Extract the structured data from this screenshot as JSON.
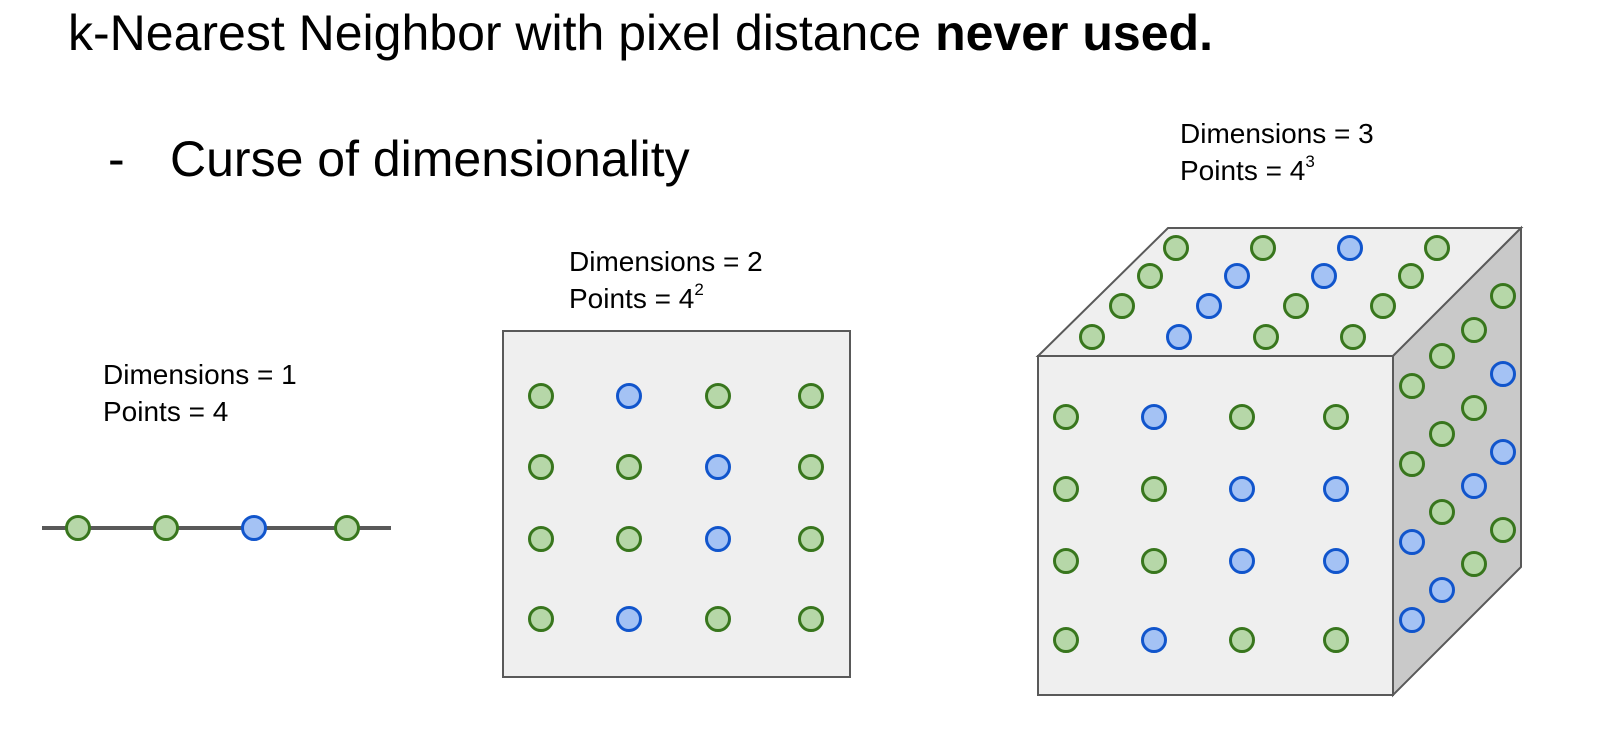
{
  "title": {
    "normal": "k-Nearest Neighbor with pixel distance ",
    "bold": "never used."
  },
  "bullet": {
    "dash": "-",
    "text": "Curse of dimensionality"
  },
  "panels": [
    {
      "dimensions_text": "Dimensions = 1",
      "points_text": "Points = 4",
      "points_exponent": "",
      "point_colors": [
        "green",
        "green",
        "blue",
        "green"
      ]
    },
    {
      "dimensions_text": "Dimensions = 2",
      "points_text": "Points = 4",
      "points_exponent": "2",
      "grid_colors": [
        [
          "green",
          "blue",
          "green",
          "green"
        ],
        [
          "green",
          "green",
          "blue",
          "green"
        ],
        [
          "green",
          "green",
          "blue",
          "green"
        ],
        [
          "green",
          "blue",
          "green",
          "green"
        ]
      ]
    },
    {
      "dimensions_text": "Dimensions = 3",
      "points_text": "Points = 4",
      "points_exponent": "3",
      "front_face_colors": [
        [
          "green",
          "blue",
          "green",
          "green"
        ],
        [
          "green",
          "green",
          "blue",
          "blue"
        ],
        [
          "green",
          "green",
          "blue",
          "blue"
        ],
        [
          "green",
          "blue",
          "green",
          "green"
        ]
      ],
      "top_face_colors": [
        [
          "green",
          "green",
          "blue",
          "green"
        ],
        [
          "green",
          "blue",
          "blue",
          "green"
        ],
        [
          "green",
          "blue",
          "green",
          "green"
        ],
        [
          "green",
          "blue",
          "green",
          "green"
        ]
      ],
      "side_face_colors": [
        [
          "green",
          "green",
          "green",
          "green"
        ],
        [
          "green",
          "green",
          "green",
          "blue"
        ],
        [
          "blue",
          "green",
          "blue",
          "blue"
        ],
        [
          "blue",
          "blue",
          "green",
          "green"
        ]
      ]
    }
  ],
  "colors": {
    "green_fill": "#b6d7a8",
    "green_stroke": "#38761d",
    "blue_fill": "#a4c2f4",
    "blue_stroke": "#1155cc",
    "face_light": "#efefef",
    "face_dark": "#c9c9c9",
    "line": "#595959"
  }
}
